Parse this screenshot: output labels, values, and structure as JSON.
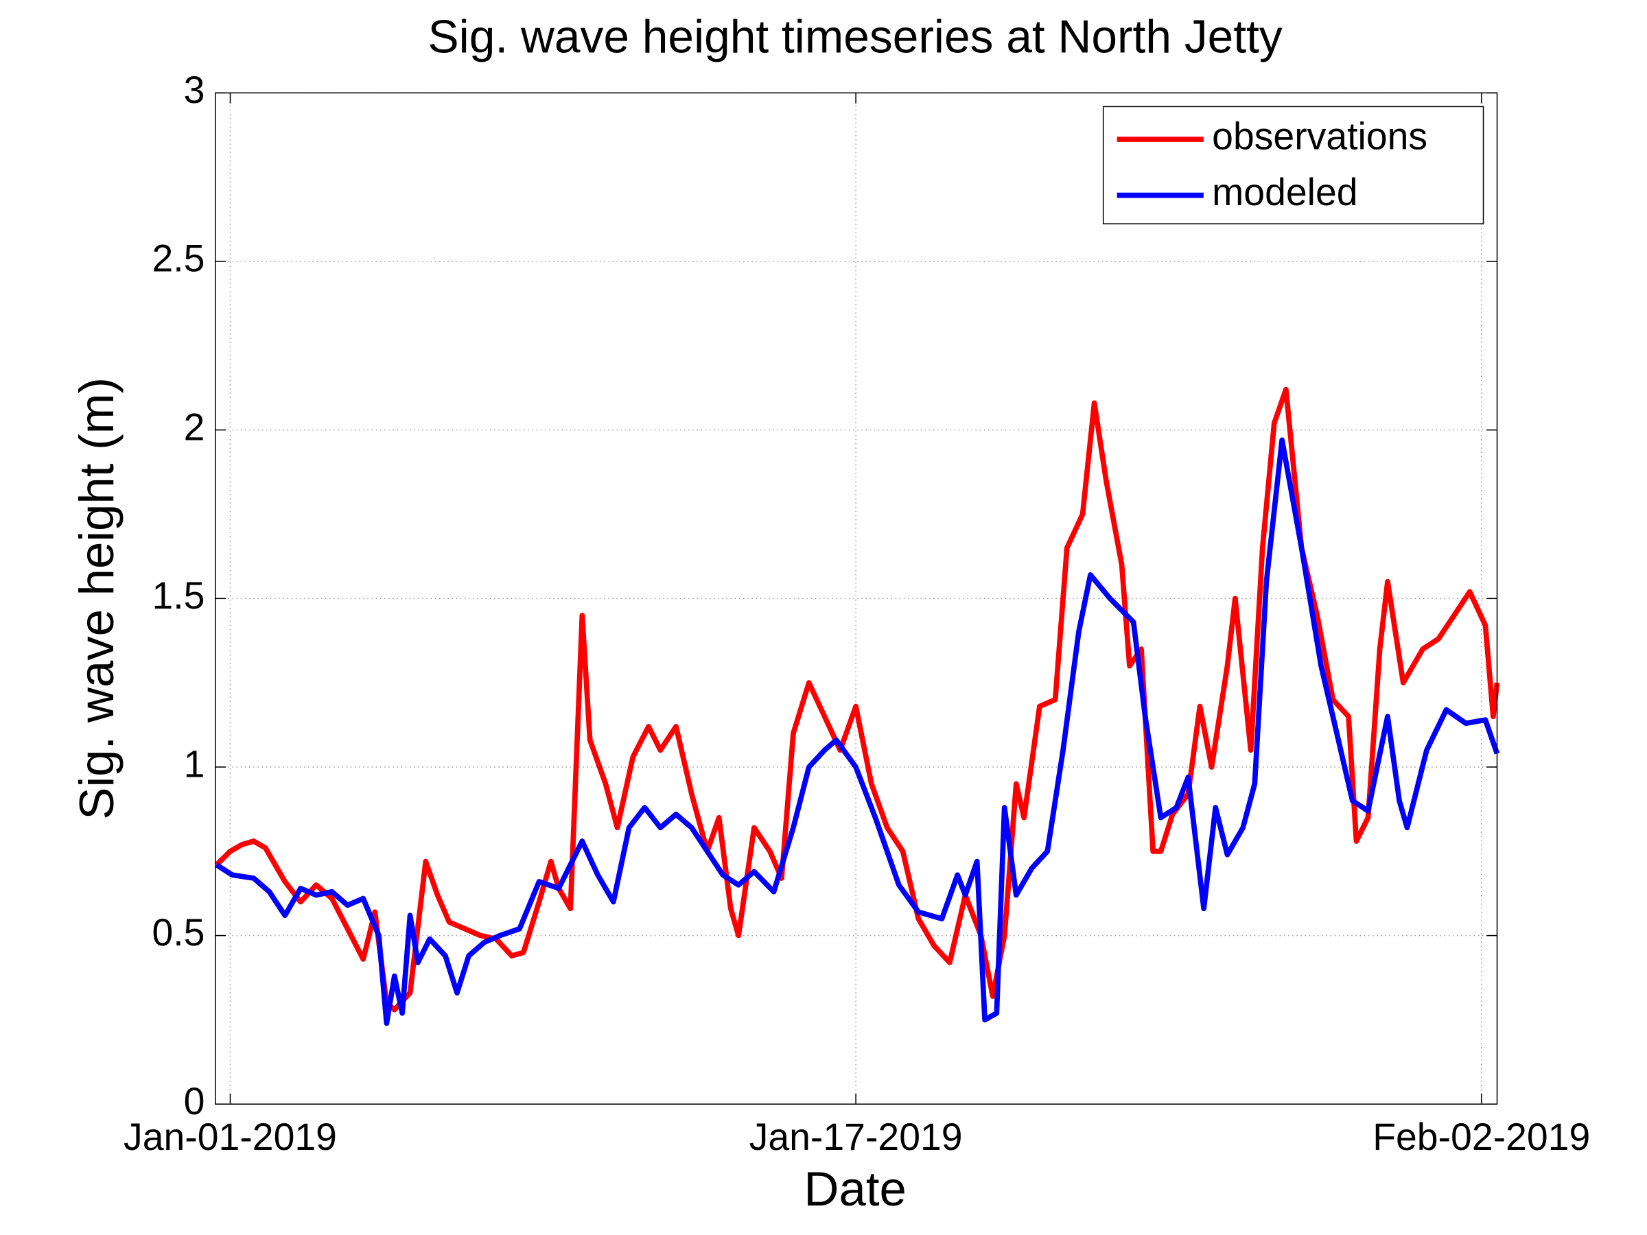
{
  "chart_data": {
    "type": "line",
    "title": "Sig. wave height timeseries at North Jetty",
    "x_label": "Date",
    "y_label": "Sig. wave height (m)",
    "xlim": [
      -0.38,
      32.4
    ],
    "ylim": [
      0,
      3
    ],
    "xticks": [
      {
        "value": 0,
        "label": "Jan-01-2019"
      },
      {
        "value": 16,
        "label": "Jan-17-2019"
      },
      {
        "value": 32,
        "label": "Feb-02-2019"
      }
    ],
    "yticks": [
      0,
      0.5,
      1,
      1.5,
      2,
      2.5,
      3
    ],
    "grid": true,
    "legend": "upper right",
    "series": [
      {
        "name": "observations",
        "color": "#ff0000",
        "x": [
          -0.35,
          0,
          0.3,
          0.6,
          0.9,
          1.1,
          1.4,
          1.8,
          2.2,
          2.6,
          3.0,
          3.4,
          3.7,
          4.0,
          4.2,
          4.6,
          5.0,
          5.3,
          5.6,
          6.0,
          6.4,
          6.8,
          7.2,
          7.5,
          7.9,
          8.2,
          8.4,
          8.7,
          9.0,
          9.2,
          9.6,
          9.9,
          10.3,
          10.7,
          11.0,
          11.4,
          11.8,
          12.2,
          12.5,
          12.8,
          13.0,
          13.4,
          13.8,
          14.1,
          14.4,
          14.8,
          15.2,
          15.6,
          16.0,
          16.4,
          16.8,
          17.2,
          17.6,
          18.0,
          18.4,
          18.8,
          19.2,
          19.5,
          19.8,
          20.1,
          20.3,
          20.7,
          21.1,
          21.4,
          21.8,
          22.1,
          22.4,
          22.8,
          23.0,
          23.3,
          23.6,
          23.8,
          24.1,
          24.5,
          24.8,
          25.1,
          25.5,
          25.7,
          26.1,
          26.4,
          26.7,
          27.0,
          27.4,
          27.8,
          28.2,
          28.6,
          28.8,
          29.1,
          29.4,
          29.6,
          30.0,
          30.5,
          30.9,
          31.3,
          31.7,
          32.1,
          32.3,
          32.4
        ],
        "values": [
          0.71,
          0.75,
          0.77,
          0.78,
          0.76,
          0.72,
          0.66,
          0.6,
          0.65,
          0.61,
          0.52,
          0.43,
          0.57,
          0.3,
          0.28,
          0.33,
          0.72,
          0.62,
          0.54,
          0.52,
          0.5,
          0.49,
          0.44,
          0.45,
          0.6,
          0.72,
          0.64,
          0.58,
          1.45,
          1.08,
          0.95,
          0.82,
          1.03,
          1.12,
          1.05,
          1.12,
          0.92,
          0.75,
          0.85,
          0.58,
          0.5,
          0.82,
          0.75,
          0.67,
          1.1,
          1.25,
          1.15,
          1.05,
          1.18,
          0.95,
          0.82,
          0.75,
          0.55,
          0.47,
          0.42,
          0.62,
          0.5,
          0.32,
          0.5,
          0.95,
          0.85,
          1.18,
          1.2,
          1.65,
          1.75,
          2.08,
          1.85,
          1.6,
          1.3,
          1.35,
          0.75,
          0.75,
          0.86,
          0.92,
          1.18,
          1.0,
          1.3,
          1.5,
          1.05,
          1.65,
          2.02,
          2.12,
          1.65,
          1.45,
          1.2,
          1.15,
          0.78,
          0.85,
          1.35,
          1.55,
          1.25,
          1.35,
          1.38,
          1.45,
          1.52,
          1.42,
          1.15,
          1.25
        ]
      },
      {
        "name": "modeled",
        "color": "#0000ff",
        "x": [
          -0.35,
          0.05,
          0.6,
          1.0,
          1.4,
          1.8,
          2.2,
          2.6,
          3.0,
          3.4,
          3.8,
          4.0,
          4.2,
          4.4,
          4.6,
          4.8,
          5.1,
          5.5,
          5.8,
          6.1,
          6.5,
          6.9,
          7.4,
          7.9,
          8.4,
          9.0,
          9.4,
          9.8,
          10.2,
          10.6,
          11.0,
          11.4,
          11.8,
          12.2,
          12.6,
          13.0,
          13.4,
          13.9,
          14.4,
          14.8,
          15.2,
          15.5,
          16.0,
          16.5,
          17.1,
          17.6,
          18.2,
          18.6,
          18.8,
          19.1,
          19.3,
          19.6,
          19.8,
          20.1,
          20.5,
          20.9,
          21.3,
          21.7,
          22.0,
          22.5,
          23.1,
          23.4,
          23.8,
          24.2,
          24.5,
          24.9,
          25.2,
          25.5,
          25.9,
          26.2,
          26.5,
          26.9,
          27.4,
          27.9,
          28.3,
          28.7,
          29.1,
          29.6,
          29.9,
          30.1,
          30.6,
          31.1,
          31.6,
          32.1,
          32.4
        ],
        "values": [
          0.71,
          0.68,
          0.67,
          0.63,
          0.56,
          0.64,
          0.62,
          0.63,
          0.59,
          0.61,
          0.5,
          0.24,
          0.38,
          0.27,
          0.56,
          0.42,
          0.49,
          0.44,
          0.33,
          0.44,
          0.48,
          0.5,
          0.52,
          0.66,
          0.64,
          0.78,
          0.68,
          0.6,
          0.82,
          0.88,
          0.82,
          0.86,
          0.82,
          0.75,
          0.68,
          0.65,
          0.69,
          0.63,
          0.82,
          1.0,
          1.05,
          1.08,
          1.0,
          0.85,
          0.65,
          0.57,
          0.55,
          0.68,
          0.62,
          0.72,
          0.25,
          0.27,
          0.88,
          0.62,
          0.7,
          0.75,
          1.05,
          1.4,
          1.57,
          1.5,
          1.43,
          1.15,
          0.85,
          0.88,
          0.97,
          0.58,
          0.88,
          0.74,
          0.82,
          0.95,
          1.55,
          1.97,
          1.65,
          1.3,
          1.1,
          0.9,
          0.87,
          1.15,
          0.9,
          0.82,
          1.05,
          1.17,
          1.13,
          1.14,
          1.04
        ]
      }
    ]
  }
}
